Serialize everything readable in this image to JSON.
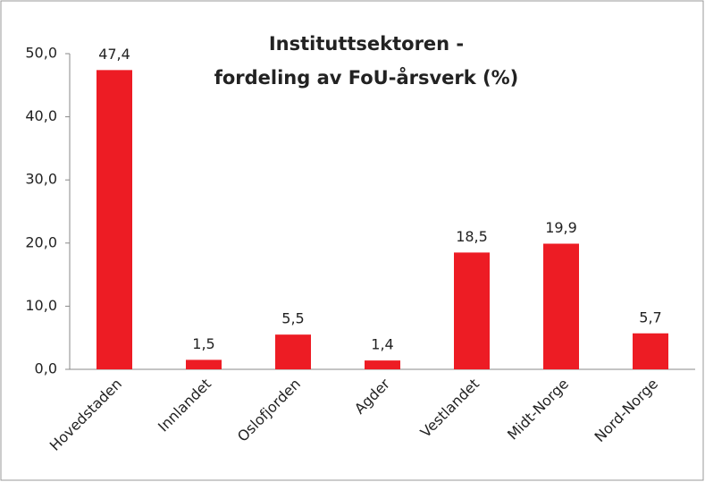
{
  "chart_data": {
    "type": "bar",
    "title": [
      "Instituttsektoren -",
      "fordeling av FoU-årsverk (%)"
    ],
    "categories": [
      "Hovedstaden",
      "Innlandet",
      "Oslofjorden",
      "Agder",
      "Vestlandet",
      "Midt-Norge",
      "Nord-Norge"
    ],
    "values": [
      47.4,
      1.5,
      5.5,
      1.4,
      18.5,
      19.9,
      5.7
    ],
    "value_labels": [
      "47,4",
      "1,5",
      "5,5",
      "1,4",
      "18,5",
      "19,9",
      "5,7"
    ],
    "color": "#ed1c24",
    "ylim": [
      0,
      50
    ],
    "yticks": [
      {
        "value": 0,
        "label": "0,0"
      },
      {
        "value": 10,
        "label": "10,0"
      },
      {
        "value": 20,
        "label": "20,0"
      },
      {
        "value": 30,
        "label": "30,0"
      },
      {
        "value": 40,
        "label": "40,0"
      },
      {
        "value": 50,
        "label": "50,0"
      }
    ],
    "grid": false
  }
}
